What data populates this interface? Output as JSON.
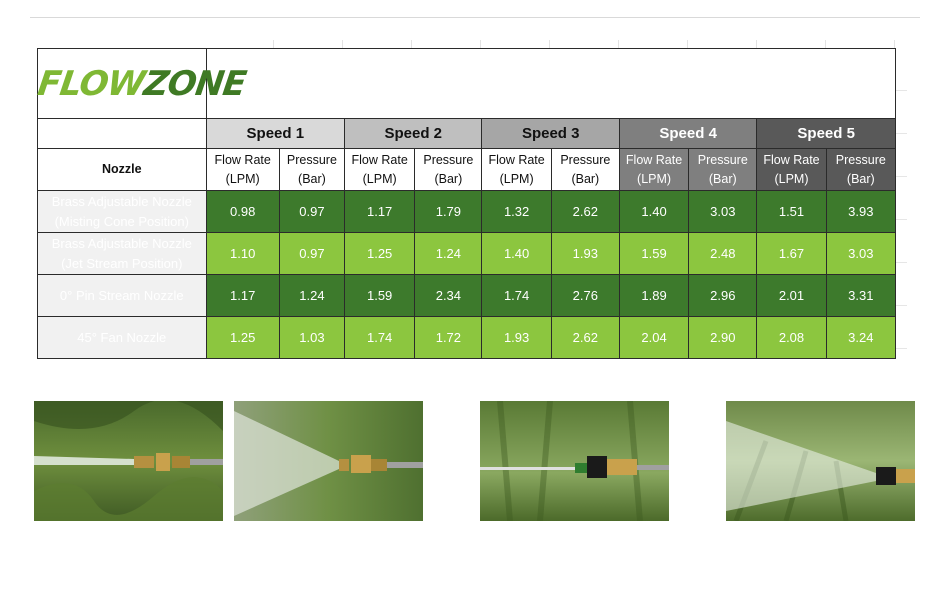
{
  "logo": {
    "text_part1": "FLOW",
    "text_part2": "ZONE",
    "color_light": "#7fb834",
    "color_dark": "#3f7a24"
  },
  "table": {
    "nozzle_header": "Nozzle",
    "speeds": [
      {
        "label": "Speed 1",
        "header_bg": "#d9d9d9",
        "header_fg": "#111111",
        "sub_bg": "#ffffff",
        "sub_fg": "#111111"
      },
      {
        "label": "Speed 2",
        "header_bg": "#bfbfbf",
        "header_fg": "#111111",
        "sub_bg": "#ffffff",
        "sub_fg": "#111111"
      },
      {
        "label": "Speed 3",
        "header_bg": "#a6a6a6",
        "header_fg": "#111111",
        "sub_bg": "#ffffff",
        "sub_fg": "#111111"
      },
      {
        "label": "Speed 4",
        "header_bg": "#7f7f7f",
        "header_fg": "#ffffff",
        "sub_bg": "#7f7f7f",
        "sub_fg": "#ffffff"
      },
      {
        "label": "Speed 5",
        "header_bg": "#595959",
        "header_fg": "#ffffff",
        "sub_bg": "#595959",
        "sub_fg": "#ffffff"
      }
    ],
    "flow_rate_label": {
      "line1": "Flow Rate",
      "line2": "(LPM)"
    },
    "pressure_label": {
      "line1": "Pressure",
      "line2": "(Bar)"
    },
    "rows": [
      {
        "nozzle_line1": "Brass Adjustable Nozzle",
        "nozzle_line2": "(Misting Cone Position)",
        "bg": "#3d7a2c",
        "values": [
          "0.98",
          "0.97",
          "1.17",
          "1.79",
          "1.32",
          "2.62",
          "1.40",
          "3.03",
          "1.51",
          "3.93"
        ]
      },
      {
        "nozzle_line1": "Brass Adjustable Nozzle",
        "nozzle_line2": "(Jet Stream Position)",
        "bg": "#8cc63f",
        "values": [
          "1.10",
          "0.97",
          "1.25",
          "1.24",
          "1.40",
          "1.93",
          "1.59",
          "2.48",
          "1.67",
          "3.03"
        ]
      },
      {
        "nozzle_line1": "0° Pin Stream Nozzle",
        "nozzle_line2": "",
        "bg": "#3d7a2c",
        "values": [
          "1.17",
          "1.24",
          "1.59",
          "2.34",
          "1.74",
          "2.76",
          "1.89",
          "2.96",
          "2.01",
          "3.31"
        ]
      },
      {
        "nozzle_line1": "45° Fan Nozzle",
        "nozzle_line2": "",
        "bg": "#8cc63f",
        "values": [
          "1.25",
          "1.03",
          "1.74",
          "1.72",
          "1.93",
          "2.62",
          "2.04",
          "2.90",
          "2.08",
          "3.24"
        ]
      }
    ]
  },
  "photos": [
    {
      "name": "photo-brass-misting",
      "nozzle_color": "#b59040",
      "spray": "jet"
    },
    {
      "name": "photo-brass-jet",
      "nozzle_color": "#b59040",
      "spray": "cone"
    },
    {
      "name": "photo-pin-stream",
      "nozzle_color": "#1a1a1a",
      "spray": "none"
    },
    {
      "name": "photo-fan",
      "nozzle_color": "#1a1a1a",
      "spray": "fan"
    }
  ]
}
